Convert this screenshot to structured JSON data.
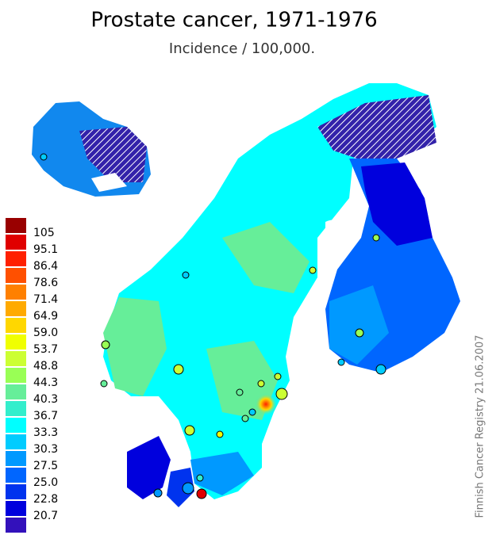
{
  "header": {
    "title": "Prostate cancer, 1971-1976",
    "subtitle": "Incidence / 100,000."
  },
  "legend": {
    "colors": [
      "#990000",
      "#e00000",
      "#ff2000",
      "#ff5000",
      "#ff8000",
      "#ffaa00",
      "#ffd700",
      "#f0ff00",
      "#ccff33",
      "#99ff55",
      "#66ee99",
      "#33eecc",
      "#00ffff",
      "#00ccff",
      "#0099ff",
      "#0066ff",
      "#0033ee",
      "#0000dd",
      "#3311bb"
    ],
    "labels": [
      "105",
      "95.1",
      "86.4",
      "78.6",
      "71.4",
      "64.9",
      "59.0",
      "53.7",
      "48.8",
      "44.3",
      "40.3",
      "36.7",
      "33.3",
      "30.3",
      "27.5",
      "25.0",
      "22.8",
      "20.7"
    ]
  },
  "source": "Finnish Cancer Registry 21.06.2007"
}
